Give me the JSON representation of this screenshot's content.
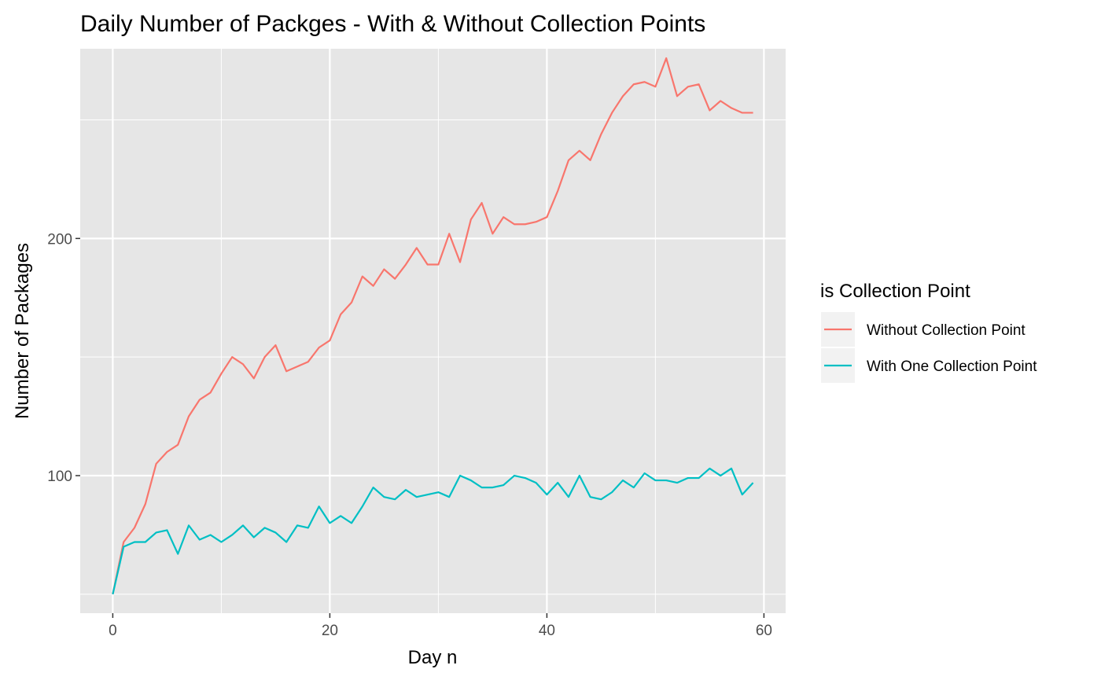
{
  "chart_data": {
    "type": "line",
    "title": "Daily Number of Packges - With & Without Collection Points",
    "xlabel": "Day n",
    "ylabel": "Number of Packages",
    "xlim": [
      -3,
      62
    ],
    "ylim": [
      42,
      280
    ],
    "x_ticks": [
      0,
      20,
      40,
      60
    ],
    "y_ticks": [
      100,
      200
    ],
    "x_minor": [
      10,
      30,
      50
    ],
    "y_minor": [
      50,
      150,
      250
    ],
    "grid": true,
    "legend": {
      "title": "is Collection Point",
      "placement": "right"
    },
    "colors": {
      "panel": "#e6e6e6",
      "grid": "#ffffff"
    },
    "x": [
      0,
      1,
      2,
      3,
      4,
      5,
      6,
      7,
      8,
      9,
      10,
      11,
      12,
      13,
      14,
      15,
      16,
      17,
      18,
      19,
      20,
      21,
      22,
      23,
      24,
      25,
      26,
      27,
      28,
      29,
      30,
      31,
      32,
      33,
      34,
      35,
      36,
      37,
      38,
      39,
      40,
      41,
      42,
      43,
      44,
      45,
      46,
      47,
      48,
      49,
      50,
      51,
      52,
      53,
      54,
      55,
      56,
      57,
      58,
      59
    ],
    "series": [
      {
        "name": "Without Collection Point",
        "color": "#f8766d",
        "values": [
          50,
          72,
          78,
          88,
          105,
          110,
          113,
          125,
          132,
          135,
          143,
          150,
          147,
          141,
          150,
          155,
          144,
          146,
          148,
          154,
          157,
          168,
          173,
          184,
          180,
          187,
          183,
          189,
          196,
          189,
          189,
          202,
          190,
          208,
          215,
          202,
          209,
          206,
          206,
          207,
          209,
          220,
          233,
          237,
          233,
          244,
          253,
          260,
          265,
          266,
          264,
          276,
          260,
          264,
          265,
          254,
          258,
          255,
          253,
          253
        ]
      },
      {
        "name": "With One Collection Point",
        "color": "#00bfc4",
        "values": [
          50,
          70,
          72,
          72,
          76,
          77,
          67,
          79,
          73,
          75,
          72,
          75,
          79,
          74,
          78,
          76,
          72,
          79,
          78,
          87,
          80,
          83,
          80,
          87,
          95,
          91,
          90,
          94,
          91,
          92,
          93,
          91,
          100,
          98,
          95,
          95,
          96,
          100,
          99,
          97,
          92,
          97,
          91,
          100,
          91,
          90,
          93,
          98,
          95,
          101,
          98,
          98,
          97,
          99,
          99,
          103,
          100,
          103,
          92,
          97
        ]
      }
    ]
  }
}
